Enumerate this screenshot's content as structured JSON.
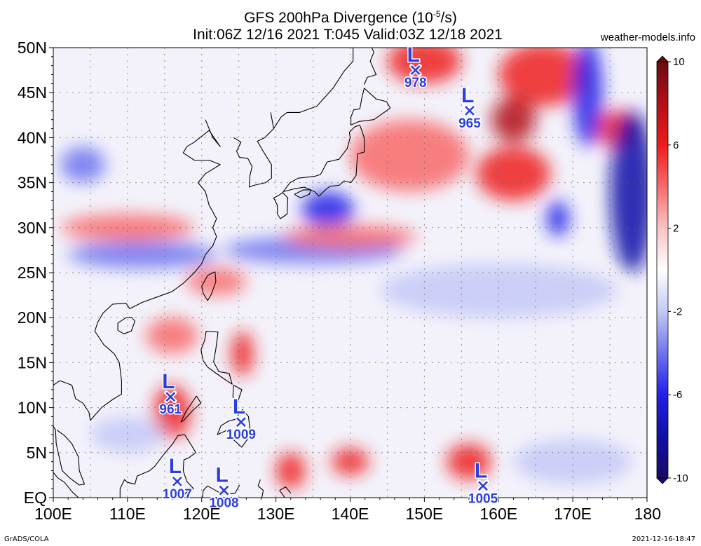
{
  "header": {
    "title_main": "GFS 200hPa Divergence (10",
    "title_exp": "-5",
    "title_unit": "/s)",
    "subtitle": "Init:06Z 12/16 2021 T:045 Valid:03Z 12/18 2021",
    "brand": "weather-models.info"
  },
  "footer": {
    "left": "GrADS/COLA",
    "right": "2021-12-16-18:47"
  },
  "axes": {
    "lat_labels": [
      "50N",
      "45N",
      "40N",
      "35N",
      "30N",
      "25N",
      "20N",
      "15N",
      "10N",
      "5N",
      "EQ"
    ],
    "lat_values": [
      50,
      45,
      40,
      35,
      30,
      25,
      20,
      15,
      10,
      5,
      0
    ],
    "lon_labels": [
      "100E",
      "110E",
      "120E",
      "130E",
      "140E",
      "150E",
      "160E",
      "170E",
      "180"
    ],
    "lon_values": [
      100,
      110,
      120,
      130,
      140,
      150,
      160,
      170,
      180
    ]
  },
  "colorbar": {
    "labels": [
      "10",
      "6",
      "2",
      "-2",
      "-6",
      "-10"
    ],
    "values": [
      10,
      6,
      2,
      -2,
      -6,
      -10
    ],
    "colors": [
      "#6a0a10",
      "#b31018",
      "#ee1c1c",
      "#f86a6a",
      "#fbc4c4",
      "#ffffff",
      "#c4c8f6",
      "#6f74ee",
      "#2020e8",
      "#1010a8",
      "#1a0a66"
    ]
  },
  "lows": [
    {
      "letter": "L",
      "pressure": "978",
      "lon": 148.8,
      "lat": 47.5
    },
    {
      "letter": "L",
      "pressure": "965",
      "lon": 156.1,
      "lat": 43.0
    },
    {
      "letter": "L",
      "pressure": "961",
      "lon": 115.8,
      "lat": 11.2
    },
    {
      "letter": "L",
      "pressure": "1009",
      "lon": 125.3,
      "lat": 8.4
    },
    {
      "letter": "L",
      "pressure": "1007",
      "lon": 116.7,
      "lat": 1.8
    },
    {
      "letter": "L",
      "pressure": "1008",
      "lon": 123.0,
      "lat": 0.8
    },
    {
      "letter": "L",
      "pressure": "1005",
      "lon": 157.9,
      "lat": 1.3
    }
  ],
  "field_blobs": [
    {
      "lon": 150,
      "lat": 48.5,
      "rx": 5,
      "ry": 2.5,
      "color": "#ee1c1c"
    },
    {
      "lon": 166,
      "lat": 47,
      "rx": 6,
      "ry": 3.5,
      "color": "#ee1c1c"
    },
    {
      "lon": 162,
      "lat": 42,
      "rx": 3,
      "ry": 2.5,
      "color": "#b31018"
    },
    {
      "lon": 176,
      "lat": 41,
      "rx": 3,
      "ry": 2,
      "color": "#ee1c1c"
    },
    {
      "lon": 148,
      "lat": 38,
      "rx": 8,
      "ry": 4,
      "color": "#f86a6a"
    },
    {
      "lon": 162,
      "lat": 36,
      "rx": 5,
      "ry": 3,
      "color": "#ee1c1c"
    },
    {
      "lon": 172,
      "lat": 45,
      "rx": 2,
      "ry": 6,
      "color": "#2020e8"
    },
    {
      "lon": 178,
      "lat": 34,
      "rx": 3,
      "ry": 9,
      "color": "#1010a8"
    },
    {
      "lon": 168,
      "lat": 31,
      "rx": 1.5,
      "ry": 2,
      "color": "#2020e8"
    },
    {
      "lon": 137,
      "lat": 32,
      "rx": 3.5,
      "ry": 2,
      "color": "#2020e8"
    },
    {
      "lon": 112,
      "lat": 27,
      "rx": 10,
      "ry": 1.5,
      "color": "#6f74ee"
    },
    {
      "lon": 135,
      "lat": 27.5,
      "rx": 12,
      "ry": 1.5,
      "color": "#6f74ee"
    },
    {
      "lon": 110,
      "lat": 30,
      "rx": 9,
      "ry": 1.5,
      "color": "#f86a6a"
    },
    {
      "lon": 140,
      "lat": 29,
      "rx": 9,
      "ry": 1.3,
      "color": "#f86a6a"
    },
    {
      "lon": 160,
      "lat": 23,
      "rx": 16,
      "ry": 3,
      "color": "#c4c8f6"
    },
    {
      "lon": 125.5,
      "lat": 16,
      "rx": 1.5,
      "ry": 2.5,
      "color": "#ee1c1c"
    },
    {
      "lon": 116,
      "lat": 9.5,
      "rx": 2.5,
      "ry": 3,
      "color": "#ee1c1c"
    },
    {
      "lon": 140,
      "lat": 4,
      "rx": 2.5,
      "ry": 1.5,
      "color": "#ee1c1c"
    },
    {
      "lon": 156,
      "lat": 4,
      "rx": 3,
      "ry": 2,
      "color": "#ee1c1c"
    },
    {
      "lon": 132,
      "lat": 3,
      "rx": 2,
      "ry": 2,
      "color": "#ee1c1c"
    },
    {
      "lon": 170,
      "lat": 4,
      "rx": 8,
      "ry": 2.5,
      "color": "#c4c8f6"
    },
    {
      "lon": 110,
      "lat": 7,
      "rx": 5,
      "ry": 2,
      "color": "#c4c8f6"
    },
    {
      "lon": 116,
      "lat": 18,
      "rx": 3.5,
      "ry": 2,
      "color": "#f86a6a"
    },
    {
      "lon": 104,
      "lat": 37,
      "rx": 3,
      "ry": 2,
      "color": "#6f74ee"
    },
    {
      "lon": 122,
      "lat": 24,
      "rx": 4,
      "ry": 1.5,
      "color": "#f86a6a"
    }
  ],
  "coastlines": [
    [
      [
        120.5,
        42
      ],
      [
        121.5,
        40
      ],
      [
        122.5,
        39
      ],
      [
        121,
        40.8
      ],
      [
        119,
        39.5
      ],
      [
        118,
        39
      ],
      [
        117.5,
        38.3
      ],
      [
        119,
        37.5
      ],
      [
        121,
        37.5
      ],
      [
        122.5,
        37
      ],
      [
        120.5,
        36
      ],
      [
        119.5,
        35
      ],
      [
        120.5,
        34
      ],
      [
        121,
        32.5
      ],
      [
        122,
        31
      ],
      [
        121.5,
        30
      ],
      [
        122,
        29
      ],
      [
        121.5,
        28
      ],
      [
        120.5,
        27
      ],
      [
        120,
        26
      ],
      [
        119,
        25
      ],
      [
        117.5,
        23.8
      ],
      [
        116,
        22.9
      ],
      [
        114,
        22.3
      ],
      [
        112,
        21.7
      ],
      [
        110.3,
        21
      ],
      [
        109.8,
        21.6
      ],
      [
        108,
        21.5
      ],
      [
        106.7,
        20.5
      ],
      [
        106,
        19.5
      ],
      [
        105.6,
        18.5
      ],
      [
        106.8,
        17
      ],
      [
        108.2,
        16
      ],
      [
        108.9,
        15
      ],
      [
        109.2,
        13
      ],
      [
        109.2,
        11.5
      ],
      [
        108,
        10.9
      ],
      [
        106.5,
        10
      ],
      [
        105,
        8.6
      ],
      [
        104.8,
        9.5
      ],
      [
        104,
        10.5
      ],
      [
        103,
        11
      ],
      [
        102.5,
        12.5
      ],
      [
        100.9,
        13
      ],
      [
        100,
        12.5
      ],
      [
        99.2,
        10.5
      ],
      [
        99.3,
        9
      ],
      [
        100.3,
        7.5
      ],
      [
        100.4,
        6
      ],
      [
        101.2,
        3
      ],
      [
        102.2,
        2.2
      ],
      [
        103.5,
        1.4
      ],
      [
        104.2,
        1.5
      ],
      [
        103.5,
        3
      ],
      [
        103.4,
        4.5
      ],
      [
        102.5,
        6
      ],
      [
        101.5,
        6.9
      ],
      [
        100.5,
        7.5
      ]
    ],
    [
      [
        129.3,
        42.8
      ],
      [
        129.7,
        41
      ],
      [
        128.5,
        40
      ],
      [
        127.5,
        39.6
      ],
      [
        128.2,
        38.6
      ],
      [
        129.4,
        37
      ],
      [
        129.4,
        35.5
      ],
      [
        128.6,
        35
      ],
      [
        127,
        34.7
      ],
      [
        126.4,
        34.5
      ],
      [
        126.5,
        35.8
      ],
      [
        126.8,
        36.8
      ],
      [
        126.2,
        37.7
      ],
      [
        125.1,
        37.8
      ],
      [
        124.7,
        38.5
      ],
      [
        125.3,
        39.5
      ],
      [
        124.3,
        40
      ]
    ],
    [
      [
        141.3,
        41.4
      ],
      [
        141.9,
        40
      ],
      [
        141.9,
        38.4
      ],
      [
        141,
        38.2
      ],
      [
        140.9,
        37
      ],
      [
        140.8,
        35.8
      ],
      [
        140.1,
        35
      ],
      [
        139.2,
        35.2
      ],
      [
        138.5,
        34.7
      ],
      [
        137.3,
        34.6
      ],
      [
        136.8,
        34.3
      ],
      [
        135.8,
        33.5
      ],
      [
        135.2,
        34
      ],
      [
        133.8,
        34.5
      ],
      [
        132.4,
        34.3
      ],
      [
        131,
        34
      ],
      [
        130.9,
        33.9
      ],
      [
        131.9,
        35
      ],
      [
        133,
        35.5
      ],
      [
        135.2,
        35.7
      ],
      [
        136,
        35.9
      ],
      [
        136.9,
        37.3
      ],
      [
        138.5,
        37.6
      ],
      [
        139.6,
        38.8
      ],
      [
        140,
        40
      ],
      [
        139.9,
        40.6
      ],
      [
        140.6,
        41.2
      ],
      [
        141.3,
        41.4
      ]
    ],
    [
      [
        130.9,
        33.9
      ],
      [
        131.6,
        33.3
      ],
      [
        131.5,
        31.5
      ],
      [
        130.6,
        31
      ],
      [
        130.2,
        31.5
      ],
      [
        130.2,
        32.5
      ],
      [
        129.7,
        33.3
      ],
      [
        130.4,
        33.6
      ],
      [
        130.9,
        33.9
      ]
    ],
    [
      [
        132.5,
        33.7
      ],
      [
        133.3,
        33.3
      ],
      [
        134.5,
        33.7
      ],
      [
        134.7,
        34.2
      ],
      [
        133.7,
        34.2
      ],
      [
        132.5,
        33.7
      ]
    ],
    [
      [
        140.1,
        41.4
      ],
      [
        141.2,
        41.8
      ],
      [
        143.2,
        42
      ],
      [
        144.9,
        43
      ],
      [
        145.4,
        43.3
      ],
      [
        144.9,
        44
      ],
      [
        143.5,
        44.3
      ],
      [
        141.9,
        45.5
      ],
      [
        141.6,
        44.5
      ],
      [
        141.3,
        43.2
      ],
      [
        140.5,
        43.1
      ],
      [
        140.1,
        42.3
      ],
      [
        140.1,
        41.4
      ]
    ],
    [
      [
        141.9,
        45.9
      ],
      [
        142.3,
        46.7
      ],
      [
        143.5,
        47
      ],
      [
        142.7,
        48.5
      ],
      [
        143.2,
        49.5
      ],
      [
        142.9,
        50
      ]
    ],
    [
      [
        140.4,
        50
      ],
      [
        140.4,
        48.5
      ],
      [
        139.2,
        47.4
      ],
      [
        137.7,
        45.5
      ],
      [
        135.5,
        43.5
      ],
      [
        133.2,
        42.8
      ],
      [
        131.5,
        42.8
      ],
      [
        130.7,
        42.3
      ],
      [
        129.7,
        41
      ]
    ],
    [
      [
        121.8,
        25.1
      ],
      [
        121.9,
        24
      ],
      [
        121.3,
        22.6
      ],
      [
        120.8,
        21.9
      ],
      [
        120.2,
        22.7
      ],
      [
        120,
        23.5
      ],
      [
        120.8,
        24.7
      ],
      [
        121.8,
        25.1
      ]
    ],
    [
      [
        110.6,
        20
      ],
      [
        111,
        19.6
      ],
      [
        110.5,
        18.5
      ],
      [
        109.5,
        18.2
      ],
      [
        108.7,
        18.6
      ],
      [
        108.7,
        19.4
      ],
      [
        109.8,
        20
      ],
      [
        110.6,
        20
      ]
    ],
    [
      [
        120.6,
        18.5
      ],
      [
        122.2,
        18.4
      ],
      [
        121.9,
        16.5
      ],
      [
        121.6,
        15.1
      ],
      [
        122.3,
        14
      ],
      [
        123.7,
        13.8
      ],
      [
        124.1,
        12.6
      ],
      [
        123,
        13.2
      ],
      [
        121.8,
        13.9
      ],
      [
        120.8,
        14.5
      ],
      [
        120.2,
        15.2
      ],
      [
        119.9,
        16.4
      ],
      [
        120.4,
        17.5
      ],
      [
        120.6,
        18.5
      ]
    ],
    [
      [
        124.3,
        12.5
      ],
      [
        125.4,
        12
      ],
      [
        125,
        11
      ],
      [
        124.5,
        10.2
      ],
      [
        124.2,
        11.3
      ],
      [
        124.3,
        12.5
      ]
    ],
    [
      [
        125.5,
        9.8
      ],
      [
        126.3,
        9
      ],
      [
        126.5,
        7.5
      ],
      [
        126.1,
        6.4
      ],
      [
        125.4,
        5.6
      ],
      [
        124.2,
        6.5
      ],
      [
        123.7,
        7.6
      ],
      [
        122.1,
        7
      ],
      [
        122.6,
        8
      ],
      [
        123.6,
        8.5
      ],
      [
        124.5,
        8.7
      ],
      [
        125.5,
        9.8
      ]
    ],
    [
      [
        119.3,
        11.3
      ],
      [
        119.9,
        10.5
      ],
      [
        118.8,
        9.7
      ],
      [
        117.6,
        8.6
      ],
      [
        117.2,
        8.4
      ],
      [
        117.9,
        9.6
      ],
      [
        119.3,
        11.3
      ]
    ],
    [
      [
        117.7,
        7
      ],
      [
        118.7,
        5.7
      ],
      [
        119.2,
        5
      ],
      [
        118.2,
        4.4
      ],
      [
        117.6,
        4.2
      ],
      [
        117.5,
        3
      ],
      [
        118,
        1.8
      ],
      [
        118.9,
        1
      ],
      [
        117.8,
        0.5
      ],
      [
        117.5,
        0
      ]
    ],
    [
      [
        117.7,
        7
      ],
      [
        116.8,
        6.9
      ],
      [
        116.1,
        6
      ],
      [
        115.4,
        5.3
      ],
      [
        114.6,
        4.5
      ],
      [
        113.7,
        3.5
      ],
      [
        113,
        3
      ],
      [
        111.3,
        2.4
      ],
      [
        111,
        1.5
      ],
      [
        110,
        1.7
      ],
      [
        109.6,
        2
      ],
      [
        109,
        1
      ],
      [
        109,
        0
      ]
    ],
    [
      [
        125.1,
        1.4
      ],
      [
        124.5,
        0.5
      ],
      [
        123.5,
        0.4
      ],
      [
        122.3,
        0.6
      ],
      [
        120.8,
        1.3
      ],
      [
        120.2,
        0.8
      ],
      [
        120.1,
        0
      ]
    ],
    [
      [
        127.9,
        2
      ],
      [
        127.6,
        1.3
      ],
      [
        128.3,
        0.8
      ],
      [
        128.1,
        0
      ]
    ],
    [
      [
        131.2,
        0
      ],
      [
        130.5,
        0.8
      ],
      [
        131.3,
        1.2
      ],
      [
        132,
        0.5
      ]
    ],
    [
      [
        97.5,
        5
      ],
      [
        98.6,
        3.9
      ],
      [
        99.8,
        3
      ],
      [
        100.6,
        2.2
      ],
      [
        101.5,
        1.7
      ],
      [
        102.6,
        0.6
      ],
      [
        103.4,
        0
      ]
    ]
  ]
}
